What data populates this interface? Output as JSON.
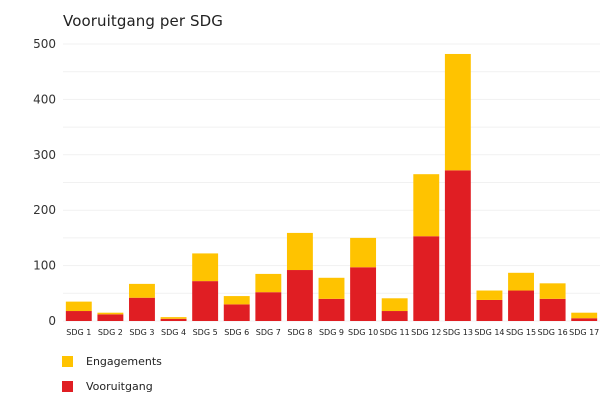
{
  "chart_data": {
    "type": "bar",
    "stacked": true,
    "title": "Vooruitgang per SDG",
    "xlabel": "",
    "ylabel": "",
    "ylim": [
      0,
      500
    ],
    "yticks": [
      0,
      100,
      200,
      300,
      400,
      500
    ],
    "categories": [
      "SDG 1",
      "SDG 2",
      "SDG 3",
      "SDG 4",
      "SDG 5",
      "SDG 6",
      "SDG 7",
      "SDG 8",
      "SDG 9",
      "SDG 10",
      "SDG 11",
      "SDG 12",
      "SDG 13",
      "SDG 14",
      "SDG 15",
      "SDG 16",
      "SDG 17"
    ],
    "series": [
      {
        "name": "Vooruitgang",
        "color": "#e01e23",
        "values": [
          18,
          12,
          42,
          4,
          72,
          30,
          52,
          92,
          40,
          97,
          18,
          153,
          272,
          38,
          55,
          40,
          5
        ]
      },
      {
        "name": "Engagements",
        "color": "#ffc300",
        "values": [
          17,
          3,
          25,
          3,
          50,
          15,
          33,
          67,
          38,
          53,
          23,
          112,
          210,
          17,
          32,
          28,
          10
        ]
      }
    ],
    "legend": {
      "position": "bottom-left",
      "order": [
        "Engagements",
        "Vooruitgang"
      ]
    },
    "grid": true
  }
}
